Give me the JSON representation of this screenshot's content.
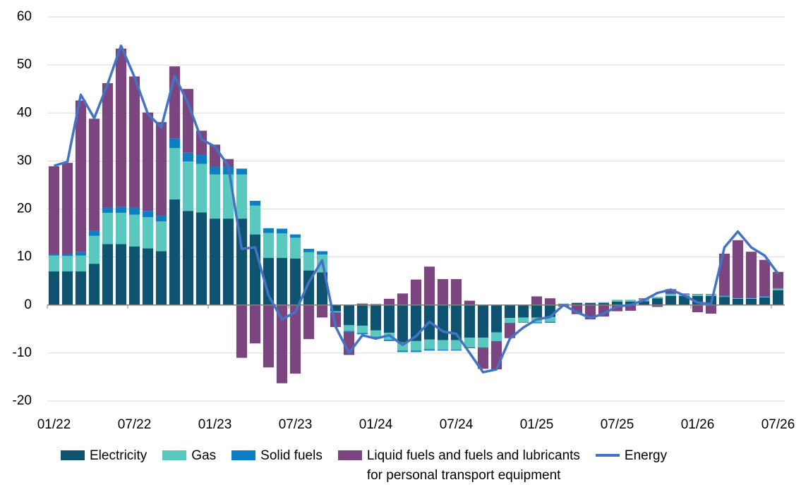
{
  "chart_data": {
    "type": "bar",
    "stacked": true,
    "grid": true,
    "categories": [
      "01/22",
      null,
      null,
      null,
      null,
      null,
      "07/22",
      null,
      null,
      null,
      null,
      null,
      "01/23",
      null,
      null,
      null,
      null,
      null,
      "07/23",
      null,
      null,
      null,
      null,
      null,
      "01/24",
      null,
      null,
      null,
      null,
      null,
      "07/24",
      null,
      null,
      null,
      null,
      null,
      "01/25",
      null,
      null,
      null,
      null,
      null,
      "07/25",
      null,
      null,
      null,
      null,
      null,
      "01/26",
      null,
      null,
      null,
      null,
      null,
      "07/26"
    ],
    "ylim": [
      -20,
      60
    ],
    "yticks": [
      -20,
      -10,
      0,
      10,
      20,
      30,
      40,
      50,
      60
    ],
    "series": [
      {
        "name": "Electricity",
        "color": "#0e5470",
        "values": [
          7,
          7,
          7,
          8.6,
          12.7,
          12.7,
          12.2,
          11.8,
          11.2,
          22,
          19.6,
          19.3,
          18,
          18,
          18,
          14.7,
          9.8,
          9.8,
          9.7,
          7.2,
          6.8,
          -1.3,
          -4.2,
          -4.3,
          -5.3,
          -5.8,
          -7.8,
          -7.5,
          -7.2,
          -7.3,
          -7.3,
          -6.8,
          -6.8,
          -5.7,
          -2.7,
          -2.6,
          -2.6,
          -2.5,
          0.2,
          0.4,
          0.4,
          0.4,
          0.7,
          0.7,
          0.8,
          1.4,
          1.9,
          1.9,
          1.9,
          1.9,
          1.7,
          1.3,
          1.3,
          1.6,
          3.1
        ]
      },
      {
        "name": "Gas",
        "color": "#5bc8c0",
        "values": [
          3.3,
          3.2,
          3.3,
          5.8,
          6.5,
          6.5,
          6.6,
          6.5,
          6.2,
          10.7,
          10.3,
          10.1,
          9.2,
          9.2,
          9.2,
          6,
          5.2,
          5.1,
          4.3,
          3.8,
          3.7,
          -0.2,
          -1.2,
          -1.5,
          -1.3,
          -1.4,
          -1.7,
          -2,
          -2,
          -2,
          -2,
          -2,
          -2,
          -1.8,
          -1,
          -1,
          -1,
          -1,
          0.1,
          0.1,
          0.1,
          0.2,
          0.4,
          0.4,
          0.4,
          0.3,
          0.4,
          0.3,
          0.3,
          0.3,
          0.1,
          0.1,
          0.1,
          0.1,
          0.3
        ]
      },
      {
        "name": "Solid fuels",
        "color": "#0a7fc4",
        "values": [
          0.3,
          0.4,
          0.8,
          1,
          1.1,
          1.2,
          1.5,
          1.3,
          1.2,
          2,
          1.8,
          1.9,
          1.6,
          1.6,
          1.2,
          1,
          1,
          1,
          0.7,
          0.7,
          0.7,
          -0.1,
          -0.2,
          -0.3,
          -0.2,
          -0.3,
          -0.3,
          -0.3,
          -0.3,
          -0.2,
          -0.2,
          -0.2,
          -0.2,
          -0.1,
          -0.1,
          -0.1,
          -0.2,
          -0.2,
          0,
          0,
          0,
          0,
          0,
          0,
          0,
          0,
          0.1,
          0.1,
          0.1,
          0.1,
          0.1,
          0.1,
          0.1,
          0.1,
          0.1
        ]
      },
      {
        "name": "Liquid fuels and fuels and lubricants\nfor personal transport equipment",
        "color": "#7b4680",
        "values": [
          18.3,
          19,
          31.5,
          23.4,
          25.9,
          33,
          27.3,
          20.5,
          19.5,
          15,
          13.3,
          5,
          4.6,
          1.6,
          -11,
          -8,
          -13,
          -16.3,
          -14.3,
          -7.1,
          -2.6,
          -3,
          -4.8,
          0.3,
          0.2,
          1.3,
          2.4,
          5.3,
          8,
          5.4,
          5.4,
          0.9,
          -4.3,
          -5.8,
          -3.1,
          0.1,
          1.8,
          1.4,
          -0.3,
          -1.9,
          -3,
          -2.4,
          -1.3,
          -1.2,
          0.2,
          -0.4,
          0.9,
          0.1,
          -1.5,
          -1.8,
          8.8,
          12,
          9.6,
          7.6,
          3.4
        ]
      },
      {
        "name": "Energy",
        "type": "line",
        "color": "#4472c4",
        "values": [
          29,
          29.8,
          43.8,
          38.9,
          46,
          54,
          47.5,
          39.8,
          37,
          47.7,
          42,
          34.5,
          33,
          29,
          11.7,
          12,
          2,
          -3,
          -1.5,
          4.7,
          9.3,
          -4.5,
          -10,
          -6.3,
          -7,
          -6.3,
          -8.3,
          -6.5,
          -3.5,
          -5.5,
          -6,
          -10,
          -14,
          -13.4,
          -7,
          -4.7,
          -3,
          -2.5,
          0,
          -1.5,
          -2.7,
          -1.8,
          -0.3,
          0,
          1,
          2.5,
          3.2,
          2,
          0.5,
          0.2,
          12,
          15.3,
          12,
          10.3,
          6.5
        ]
      }
    ]
  }
}
